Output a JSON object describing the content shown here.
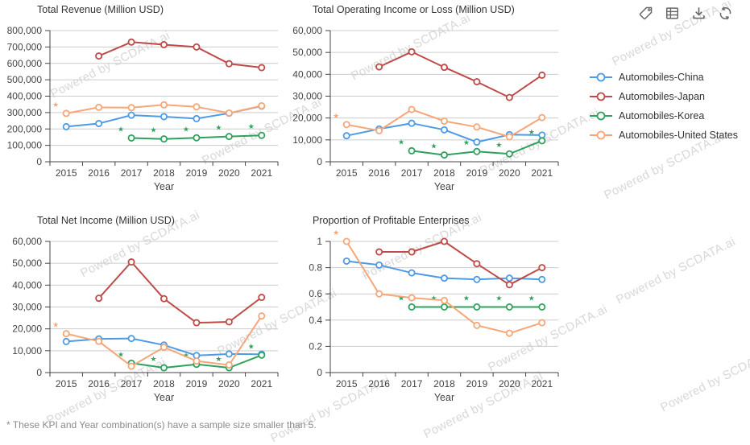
{
  "watermark": {
    "text": "Powered by SCDATA.ai"
  },
  "toolbar": {
    "buttons": [
      {
        "icon": "tag-icon"
      },
      {
        "icon": "table-icon"
      },
      {
        "icon": "download-icon"
      },
      {
        "icon": "refresh-icon"
      }
    ]
  },
  "legend": {
    "items": [
      {
        "label": "Automobiles-China",
        "color": "#4D9BE6"
      },
      {
        "label": "Automobiles-Japan",
        "color": "#BE4B47"
      },
      {
        "label": "Automobiles-Korea",
        "color": "#2EA25C"
      },
      {
        "label": "Automobiles-United States",
        "color": "#F7A678"
      }
    ]
  },
  "footnote": "* These KPI and Year combination(s) have a sample size smaller than 5.",
  "chart_data": [
    {
      "type": "line",
      "title": "Total Revenue (Million USD)",
      "xlabel": "Year",
      "categories": [
        "2015",
        "2016",
        "2017",
        "2018",
        "2019",
        "2020",
        "2021"
      ],
      "ylim": [
        0,
        800000
      ],
      "yticks": [
        0,
        100000,
        200000,
        300000,
        400000,
        500000,
        600000,
        700000,
        800000
      ],
      "ytick_labels": [
        "0",
        "100,000",
        "200,000",
        "300,000",
        "400,000",
        "500,000",
        "600,000",
        "700,000",
        "800,000"
      ],
      "grid": true,
      "legend_position": "right",
      "series": [
        {
          "name": "Automobiles-China",
          "color": "#4D9BE6",
          "values": [
            214000,
            233000,
            284000,
            275000,
            263000,
            296000,
            339000
          ],
          "small_sample_years": []
        },
        {
          "name": "Automobiles-Japan",
          "color": "#BE4B47",
          "values": [
            null,
            645000,
            730000,
            714000,
            700000,
            598000,
            574000
          ],
          "small_sample_years": []
        },
        {
          "name": "Automobiles-Korea",
          "color": "#2EA25C",
          "values": [
            null,
            null,
            145000,
            139000,
            146000,
            154000,
            161000
          ],
          "small_sample_years": [
            "2017",
            "2018",
            "2019",
            "2020",
            "2021"
          ]
        },
        {
          "name": "Automobiles-United States",
          "color": "#F7A678",
          "values": [
            295000,
            332000,
            330000,
            347000,
            335000,
            297000,
            341000
          ],
          "small_sample_years": [
            "2015"
          ]
        }
      ]
    },
    {
      "type": "line",
      "title": "Total Operating Income or Loss (Million USD)",
      "xlabel": "Year",
      "categories": [
        "2015",
        "2016",
        "2017",
        "2018",
        "2019",
        "2020",
        "2021"
      ],
      "ylim": [
        0,
        60000
      ],
      "yticks": [
        0,
        10000,
        20000,
        30000,
        40000,
        50000,
        60000
      ],
      "ytick_labels": [
        "0",
        "10,000",
        "20,000",
        "30,000",
        "40,000",
        "50,000",
        "60,000"
      ],
      "grid": true,
      "legend_position": "right",
      "series": [
        {
          "name": "Automobiles-China",
          "color": "#4D9BE6",
          "values": [
            11900,
            15000,
            17600,
            14600,
            9000,
            12400,
            12200
          ],
          "small_sample_years": []
        },
        {
          "name": "Automobiles-Japan",
          "color": "#BE4B47",
          "values": [
            null,
            43400,
            50300,
            43200,
            36600,
            29400,
            39600
          ],
          "small_sample_years": []
        },
        {
          "name": "Automobiles-Korea",
          "color": "#2EA25C",
          "values": [
            null,
            null,
            5000,
            3100,
            4700,
            3600,
            9600
          ],
          "small_sample_years": [
            "2017",
            "2018",
            "2019",
            "2020",
            "2021"
          ]
        },
        {
          "name": "Automobiles-United States",
          "color": "#F7A678",
          "values": [
            17000,
            14200,
            23900,
            18600,
            15900,
            11400,
            20200
          ],
          "small_sample_years": [
            "2015"
          ]
        }
      ]
    },
    {
      "type": "line",
      "title": "Total Net Income (Million USD)",
      "xlabel": "Year",
      "categories": [
        "2015",
        "2016",
        "2017",
        "2018",
        "2019",
        "2020",
        "2021"
      ],
      "ylim": [
        0,
        60000
      ],
      "yticks": [
        0,
        10000,
        20000,
        30000,
        40000,
        50000,
        60000
      ],
      "ytick_labels": [
        "0",
        "10,000",
        "20,000",
        "30,000",
        "40,000",
        "50,000",
        "60,000"
      ],
      "grid": true,
      "legend_position": "right",
      "series": [
        {
          "name": "Automobiles-China",
          "color": "#4D9BE6",
          "values": [
            14200,
            15400,
            15600,
            12600,
            7800,
            8500,
            8400
          ],
          "small_sample_years": []
        },
        {
          "name": "Automobiles-Japan",
          "color": "#BE4B47",
          "values": [
            null,
            34000,
            50600,
            33800,
            22800,
            23200,
            34400
          ],
          "small_sample_years": []
        },
        {
          "name": "Automobiles-Korea",
          "color": "#2EA25C",
          "values": [
            null,
            null,
            4300,
            2200,
            3800,
            2200,
            8000
          ],
          "small_sample_years": [
            "2017",
            "2018",
            "2019",
            "2020",
            "2021"
          ]
        },
        {
          "name": "Automobiles-United States",
          "color": "#F7A678",
          "values": [
            17800,
            14300,
            2900,
            11600,
            5300,
            3500,
            25900
          ],
          "small_sample_years": [
            "2015"
          ]
        }
      ]
    },
    {
      "type": "line",
      "title": "Proportion of Profitable Enterprises",
      "xlabel": "Year",
      "categories": [
        "2015",
        "2016",
        "2017",
        "2018",
        "2019",
        "2020",
        "2021"
      ],
      "ylim": [
        0,
        1
      ],
      "yticks": [
        0,
        0.2,
        0.4,
        0.6,
        0.8,
        1
      ],
      "ytick_labels": [
        "0",
        "0.2",
        "0.4",
        "0.6",
        "0.8",
        "1"
      ],
      "grid": true,
      "legend_position": "right",
      "series": [
        {
          "name": "Automobiles-China",
          "color": "#4D9BE6",
          "values": [
            0.85,
            0.82,
            0.76,
            0.72,
            0.71,
            0.72,
            0.71
          ],
          "small_sample_years": []
        },
        {
          "name": "Automobiles-Japan",
          "color": "#BE4B47",
          "values": [
            null,
            0.92,
            0.92,
            1,
            0.83,
            0.67,
            0.8
          ],
          "small_sample_years": []
        },
        {
          "name": "Automobiles-Korea",
          "color": "#2EA25C",
          "values": [
            null,
            null,
            0.5,
            0.5,
            0.5,
            0.5,
            0.5
          ],
          "small_sample_years": [
            "2017",
            "2018",
            "2019",
            "2020",
            "2021"
          ]
        },
        {
          "name": "Automobiles-United States",
          "color": "#F7A678",
          "values": [
            1,
            0.6,
            0.57,
            0.55,
            0.36,
            0.3,
            0.38
          ],
          "small_sample_years": [
            "2015"
          ]
        }
      ]
    }
  ]
}
